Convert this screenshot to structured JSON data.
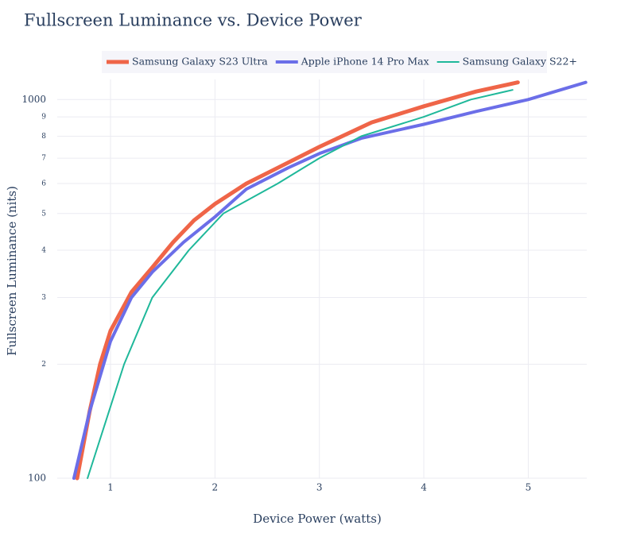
{
  "chart_data": {
    "type": "line",
    "title": "Fullscreen Luminance vs. Device Power",
    "xlabel": "Device Power (watts)",
    "ylabel": "Fullscreen Luminance (nits)",
    "log_y": true,
    "grid": true,
    "legend": "top",
    "xlim": [
      0.49,
      5.56
    ],
    "xticks": [
      1,
      2,
      3,
      4,
      5
    ],
    "ylim": [
      100,
      1130
    ],
    "yticks": [
      100,
      {
        "value": 200,
        "label": "2"
      },
      {
        "value": 300,
        "label": "3"
      },
      {
        "value": 400,
        "label": "4"
      },
      {
        "value": 500,
        "label": "5"
      },
      {
        "value": 600,
        "label": "6"
      },
      {
        "value": 700,
        "label": "7"
      },
      {
        "value": 800,
        "label": "8"
      },
      {
        "value": 900,
        "label": "9"
      },
      1000
    ],
    "series": [
      {
        "name": "Samsung Galaxy S23 Ultra",
        "color": "#ef6548",
        "width": 5,
        "x": [
          0.68,
          0.8,
          0.9,
          1.0,
          1.2,
          1.4,
          1.6,
          1.8,
          2.0,
          2.3,
          2.6,
          3.0,
          3.5,
          4.0,
          4.5,
          4.9
        ],
        "values": [
          100,
          150,
          200,
          245,
          310,
          360,
          420,
          480,
          530,
          600,
          660,
          750,
          870,
          960,
          1050,
          1110
        ]
      },
      {
        "name": "Apple iPhone 14 Pro Max",
        "color": "#6b6ee8",
        "width": 4,
        "x": [
          0.65,
          0.8,
          1.0,
          1.2,
          1.4,
          1.7,
          2.0,
          2.3,
          2.7,
          3.0,
          3.4,
          4.0,
          4.5,
          5.0,
          5.55
        ],
        "values": [
          100,
          150,
          230,
          300,
          350,
          420,
          490,
          580,
          660,
          720,
          790,
          860,
          930,
          1000,
          1110
        ]
      },
      {
        "name": "Samsung Galaxy S22+",
        "color": "#1fb89a",
        "width": 2,
        "x": [
          0.78,
          1.13,
          1.4,
          1.75,
          2.08,
          2.6,
          3.0,
          3.4,
          4.0,
          4.45,
          4.85
        ],
        "values": [
          100,
          200,
          300,
          400,
          500,
          600,
          700,
          800,
          900,
          1000,
          1060
        ]
      }
    ]
  }
}
